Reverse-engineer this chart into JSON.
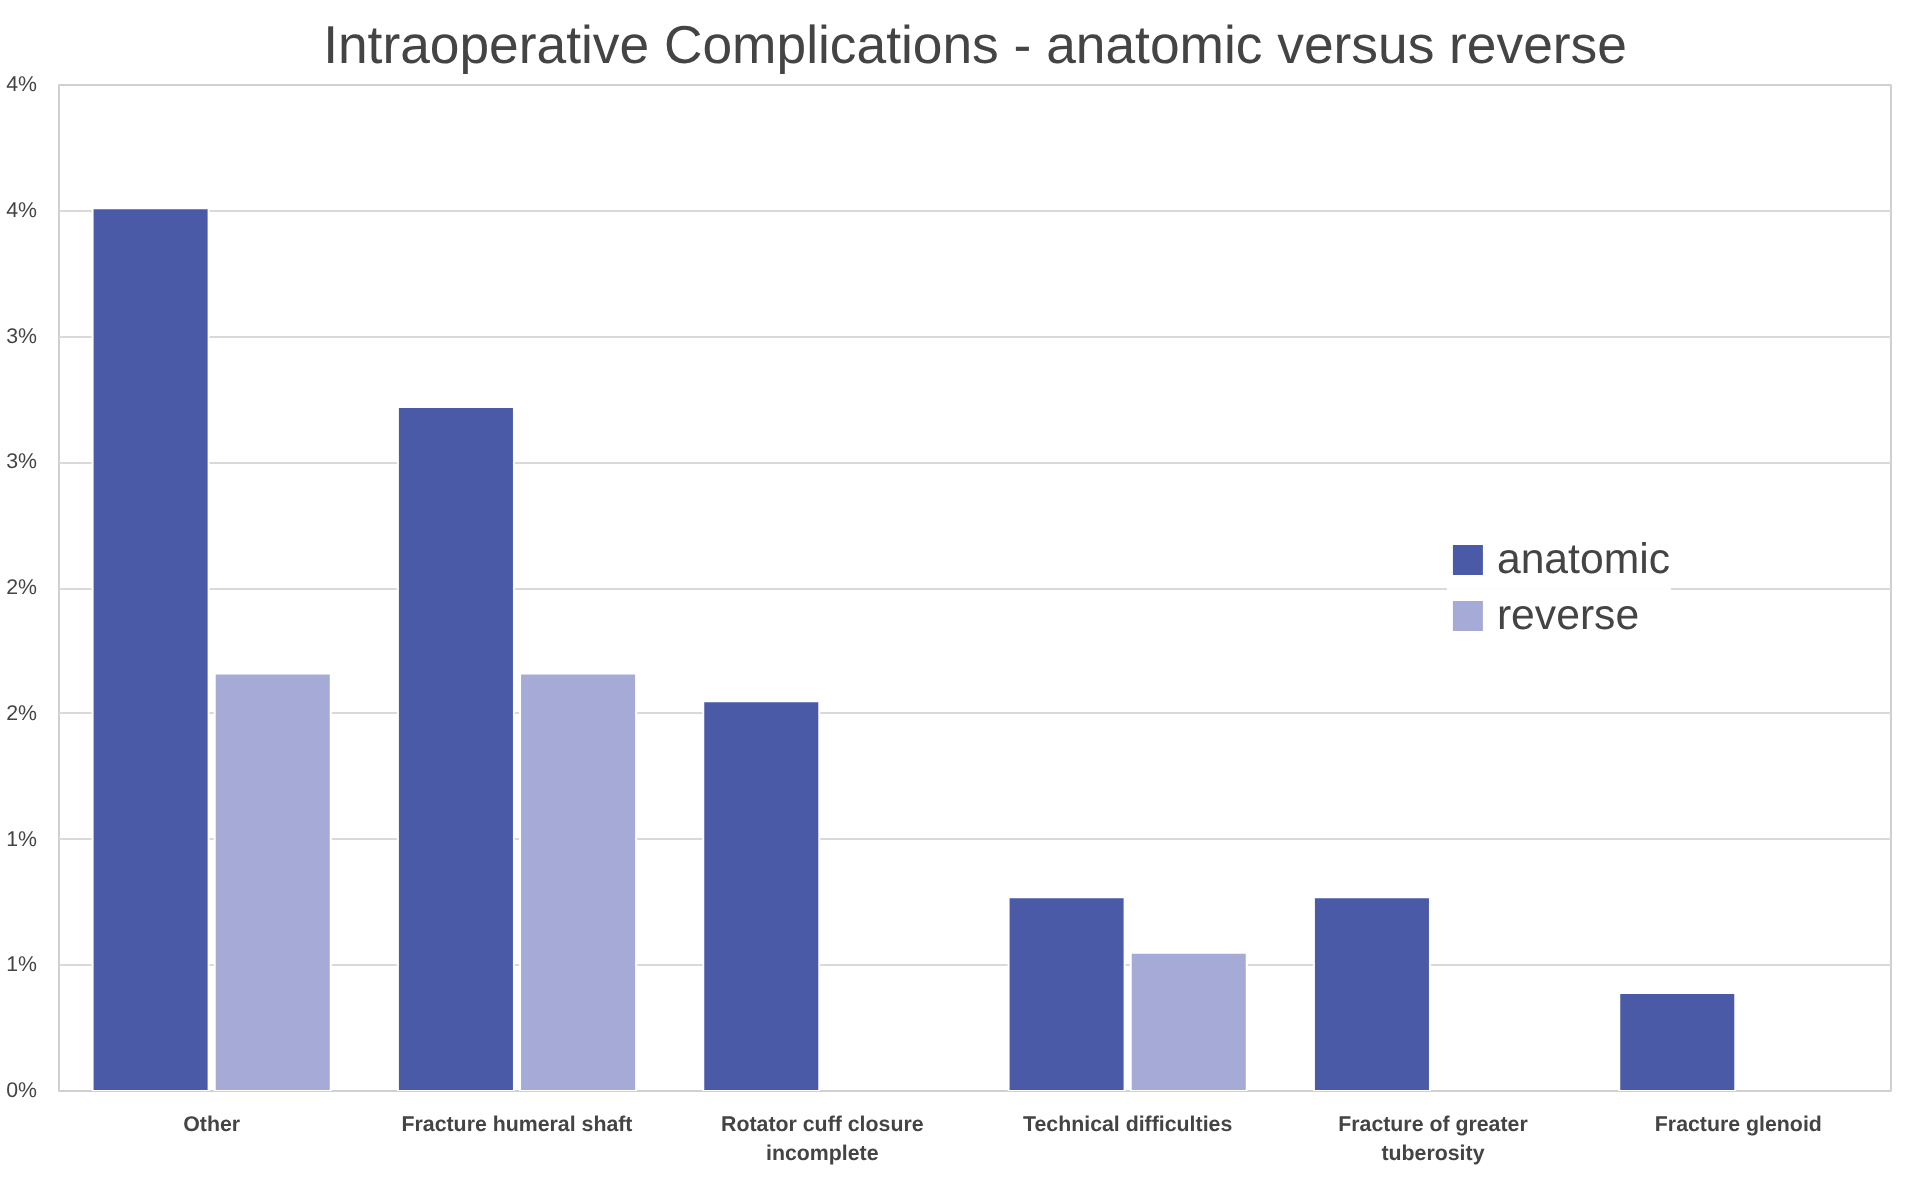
{
  "chart_data": {
    "type": "bar",
    "title": "Intraoperative Complications - anatomic versus reverse",
    "categories": [
      "Other",
      "Fracture humeral shaft",
      "Rotator cuff closure incomplete",
      "Technical difficulties",
      "Fracture of greater tuberosity",
      "Fracture glenoid"
    ],
    "series": [
      {
        "name": "anatomic",
        "color": "#4a5aa6",
        "values": [
          3.51,
          2.72,
          1.55,
          0.77,
          0.77,
          0.39
        ]
      },
      {
        "name": "reverse",
        "color": "#a5abd6",
        "values": [
          1.66,
          1.66,
          null,
          0.55,
          null,
          null
        ]
      }
    ],
    "ylim": [
      0,
      4
    ],
    "yticks": [
      {
        "value": 0,
        "label": "0%"
      },
      {
        "value": 0.5,
        "label": "1%"
      },
      {
        "value": 1,
        "label": "1%"
      },
      {
        "value": 1.5,
        "label": "2%"
      },
      {
        "value": 2,
        "label": "2%"
      },
      {
        "value": 2.5,
        "label": "3%"
      },
      {
        "value": 3,
        "label": "3%"
      },
      {
        "value": 3.5,
        "label": "4%"
      },
      {
        "value": 4,
        "label": "4%"
      }
    ],
    "grid": "y",
    "legend": "right"
  }
}
